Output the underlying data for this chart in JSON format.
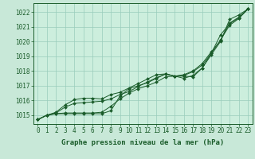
{
  "background_color": "#c8e8d8",
  "plot_bg_color": "#cceedd",
  "grid_color": "#99ccbb",
  "line_color": "#1a5c2a",
  "title": "Graphe pression niveau de la mer (hPa)",
  "tick_fontsize": 5.5,
  "xlabel_fontsize": 6.5,
  "xlim": [
    -0.5,
    23.5
  ],
  "ylim": [
    1014.4,
    1022.6
  ],
  "yticks": [
    1015,
    1016,
    1017,
    1018,
    1019,
    1020,
    1021,
    1022
  ],
  "xticks": [
    0,
    1,
    2,
    3,
    4,
    5,
    6,
    7,
    8,
    9,
    10,
    11,
    12,
    13,
    14,
    15,
    16,
    17,
    18,
    19,
    20,
    21,
    22,
    23
  ],
  "series": [
    [
      1014.7,
      1015.0,
      1015.1,
      1015.1,
      1015.1,
      1015.1,
      1015.1,
      1015.1,
      1015.3,
      1016.3,
      1016.8,
      1017.0,
      1017.2,
      1017.5,
      1017.8,
      1017.65,
      1017.5,
      1017.7,
      1018.2,
      1019.1,
      1020.0,
      1021.5,
      1021.8,
      1022.2
    ],
    [
      1014.7,
      1015.0,
      1015.1,
      1015.15,
      1015.15,
      1015.15,
      1015.15,
      1015.2,
      1015.6,
      1016.1,
      1016.5,
      1016.8,
      1017.0,
      1017.25,
      1017.6,
      1017.65,
      1017.75,
      1018.0,
      1018.5,
      1019.3,
      1020.05,
      1021.25,
      1021.65,
      1022.2
    ],
    [
      1014.7,
      1015.0,
      1015.15,
      1015.55,
      1015.8,
      1015.85,
      1015.9,
      1015.95,
      1016.1,
      1016.4,
      1016.6,
      1016.95,
      1017.25,
      1017.55,
      1017.8,
      1017.65,
      1017.7,
      1017.95,
      1018.4,
      1019.2,
      1020.1,
      1021.1,
      1021.55,
      1022.2
    ],
    [
      1014.7,
      1015.0,
      1015.2,
      1015.7,
      1016.05,
      1016.15,
      1016.15,
      1016.1,
      1016.4,
      1016.55,
      1016.85,
      1017.15,
      1017.45,
      1017.75,
      1017.8,
      1017.65,
      1017.65,
      1017.6,
      1018.2,
      1019.2,
      1020.45,
      1021.2,
      1021.6,
      1022.2
    ]
  ]
}
